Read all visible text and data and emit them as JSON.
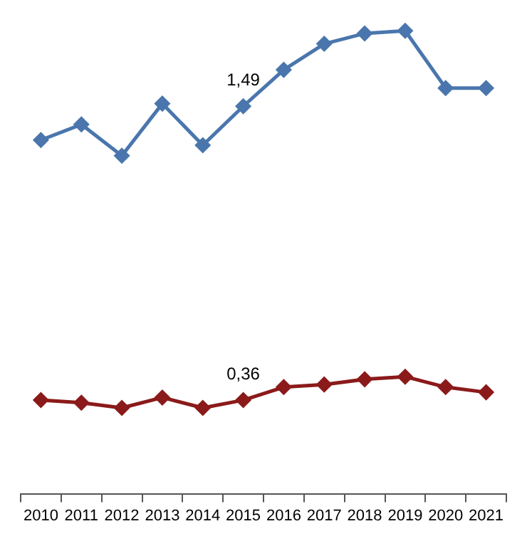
{
  "chart_data": {
    "type": "line",
    "categories": [
      "2010",
      "2011",
      "2012",
      "2013",
      "2014",
      "2015",
      "2016",
      "2017",
      "2018",
      "2019",
      "2020",
      "2021"
    ],
    "series": [
      {
        "color": "#4a76ad",
        "values": [
          1.36,
          1.42,
          1.3,
          1.5,
          1.34,
          1.49,
          1.63,
          1.73,
          1.77,
          1.78,
          1.56,
          1.56
        ],
        "value_labels": [
          null,
          null,
          null,
          null,
          null,
          "1,49",
          null,
          null,
          null,
          null,
          null,
          null
        ]
      },
      {
        "color": "#8b1a1a",
        "values": [
          0.36,
          0.35,
          0.33,
          0.37,
          0.33,
          0.36,
          0.41,
          0.42,
          0.44,
          0.45,
          0.41,
          0.39
        ],
        "value_labels": [
          null,
          null,
          null,
          null,
          null,
          "0,36",
          null,
          null,
          null,
          null,
          null,
          null
        ]
      }
    ],
    "tick_labels": "x",
    "grid": false,
    "legend": false,
    "marker": "diamond",
    "line_style": "solid"
  }
}
